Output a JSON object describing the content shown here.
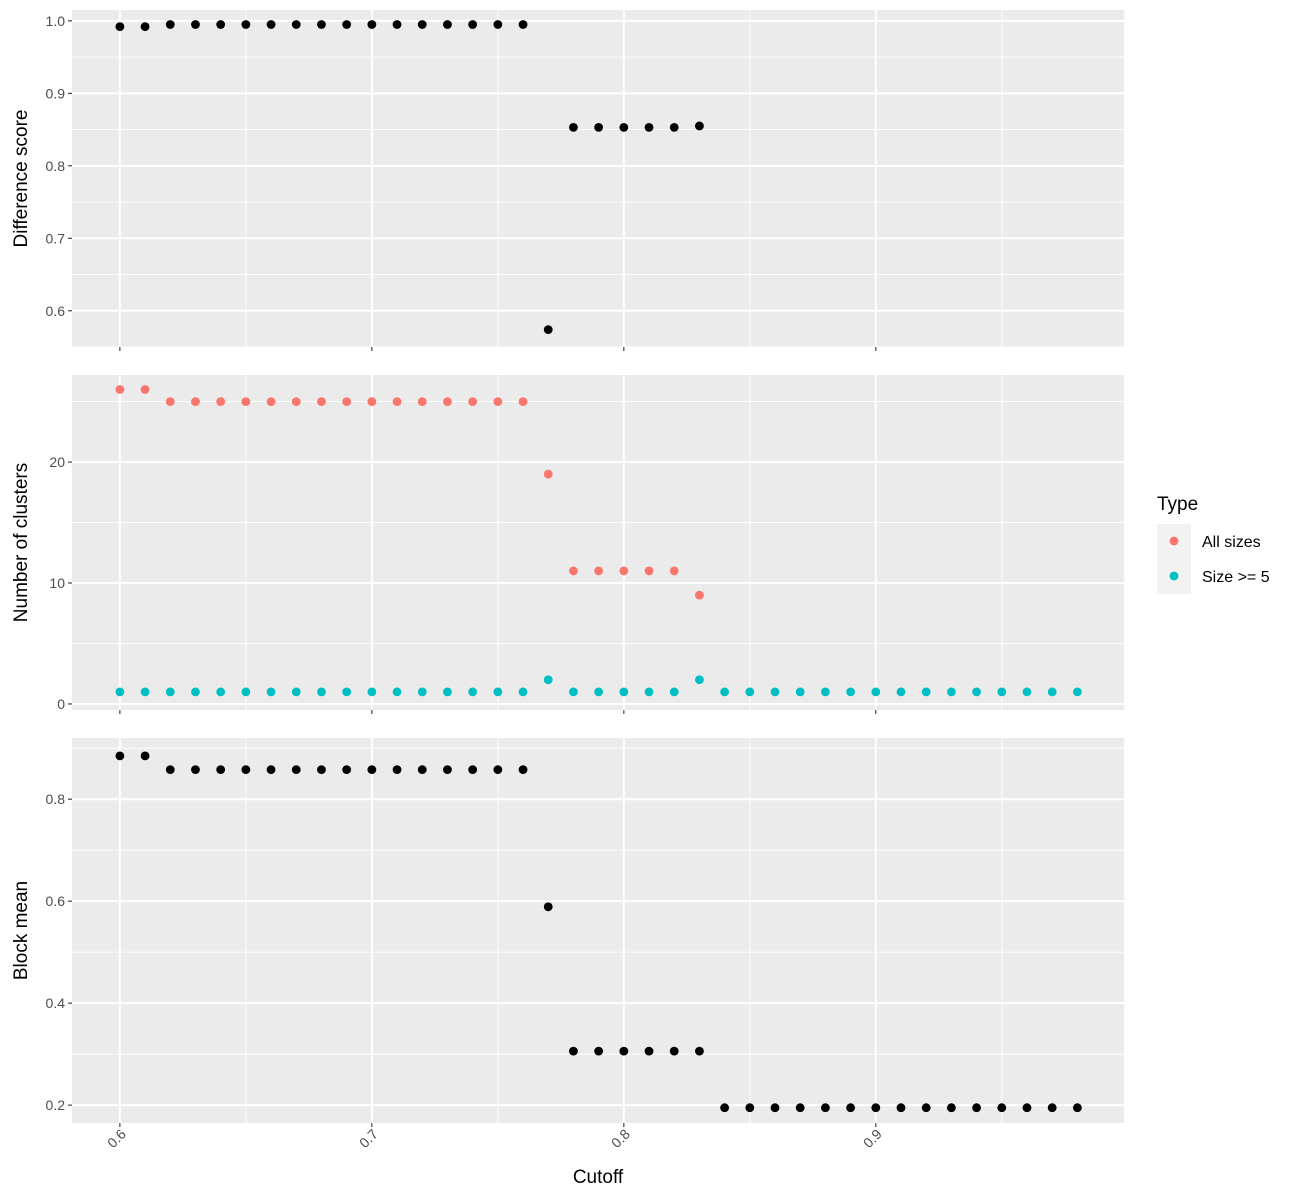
{
  "chart_data": {
    "type": "scatter",
    "xlabel": "Cutoff",
    "xlim": [
      0.581,
      0.9985
    ],
    "xticks": [
      "0.6",
      "0.7",
      "0.8",
      "0.9"
    ],
    "panels": [
      {
        "ylabel": "Difference score",
        "ylim": [
          0.55,
          1.015
        ],
        "yticks": [
          "0.6",
          "0.7",
          "0.8",
          "0.9",
          "1.0"
        ],
        "series": [
          {
            "color": "#000000",
            "x": [
              0.6,
              0.61,
              0.62,
              0.63,
              0.64,
              0.65,
              0.66,
              0.67,
              0.68,
              0.69,
              0.7,
              0.71,
              0.72,
              0.73,
              0.74,
              0.75,
              0.76,
              0.77,
              0.78,
              0.79,
              0.8,
              0.81,
              0.82,
              0.83
            ],
            "y": [
              0.992,
              0.992,
              0.995,
              0.995,
              0.995,
              0.995,
              0.995,
              0.995,
              0.995,
              0.995,
              0.995,
              0.995,
              0.995,
              0.995,
              0.995,
              0.995,
              0.995,
              0.574,
              0.853,
              0.853,
              0.853,
              0.853,
              0.853,
              0.855
            ]
          }
        ]
      },
      {
        "ylabel": "Number of clusters",
        "ylim": [
          -0.5,
          27.2
        ],
        "yticks": [
          "0",
          "10",
          "20"
        ],
        "series": [
          {
            "name": "All sizes",
            "color": "#F8766D",
            "x": [
              0.6,
              0.61,
              0.62,
              0.63,
              0.64,
              0.65,
              0.66,
              0.67,
              0.68,
              0.69,
              0.7,
              0.71,
              0.72,
              0.73,
              0.74,
              0.75,
              0.76,
              0.77,
              0.78,
              0.79,
              0.8,
              0.81,
              0.82,
              0.83
            ],
            "y": [
              26,
              26,
              25,
              25,
              25,
              25,
              25,
              25,
              25,
              25,
              25,
              25,
              25,
              25,
              25,
              25,
              25,
              19,
              11,
              11,
              11,
              11,
              11,
              9
            ]
          },
          {
            "name": "Size >= 5",
            "color": "#00BFC4",
            "x": [
              0.6,
              0.61,
              0.62,
              0.63,
              0.64,
              0.65,
              0.66,
              0.67,
              0.68,
              0.69,
              0.7,
              0.71,
              0.72,
              0.73,
              0.74,
              0.75,
              0.76,
              0.77,
              0.78,
              0.79,
              0.8,
              0.81,
              0.82,
              0.83,
              0.84,
              0.85,
              0.86,
              0.87,
              0.88,
              0.89,
              0.9,
              0.91,
              0.92,
              0.93,
              0.94,
              0.95,
              0.96,
              0.97,
              0.98
            ],
            "y": [
              1,
              1,
              1,
              1,
              1,
              1,
              1,
              1,
              1,
              1,
              1,
              1,
              1,
              1,
              1,
              1,
              1,
              2,
              1,
              1,
              1,
              1,
              1,
              2,
              1,
              1,
              1,
              1,
              1,
              1,
              1,
              1,
              1,
              1,
              1,
              1,
              1,
              1,
              1
            ]
          }
        ]
      },
      {
        "ylabel": "Block mean",
        "ylim": [
          0.165,
          0.92
        ],
        "yticks": [
          "0.2",
          "0.4",
          "0.6",
          "0.8"
        ],
        "series": [
          {
            "color": "#000000",
            "x": [
              0.6,
              0.61,
              0.62,
              0.63,
              0.64,
              0.65,
              0.66,
              0.67,
              0.68,
              0.69,
              0.7,
              0.71,
              0.72,
              0.73,
              0.74,
              0.75,
              0.76,
              0.77,
              0.78,
              0.79,
              0.8,
              0.81,
              0.82,
              0.83,
              0.84,
              0.85,
              0.86,
              0.87,
              0.88,
              0.89,
              0.9,
              0.91,
              0.92,
              0.93,
              0.94,
              0.95,
              0.96,
              0.97,
              0.98
            ],
            "y": [
              0.885,
              0.885,
              0.858,
              0.858,
              0.858,
              0.858,
              0.858,
              0.858,
              0.858,
              0.858,
              0.858,
              0.858,
              0.858,
              0.858,
              0.858,
              0.858,
              0.858,
              0.589,
              0.306,
              0.306,
              0.306,
              0.306,
              0.306,
              0.306,
              0.195,
              0.195,
              0.195,
              0.195,
              0.195,
              0.195,
              0.195,
              0.195,
              0.195,
              0.195,
              0.195,
              0.195,
              0.195,
              0.195,
              0.195
            ]
          }
        ]
      }
    ],
    "legend": {
      "title": "Type",
      "position": "right",
      "items": [
        {
          "label": "All sizes",
          "color": "#F8766D"
        },
        {
          "label": "Size >= 5",
          "color": "#00BFC4"
        }
      ]
    },
    "grid": true,
    "panel_background": "#EBEBEB"
  }
}
